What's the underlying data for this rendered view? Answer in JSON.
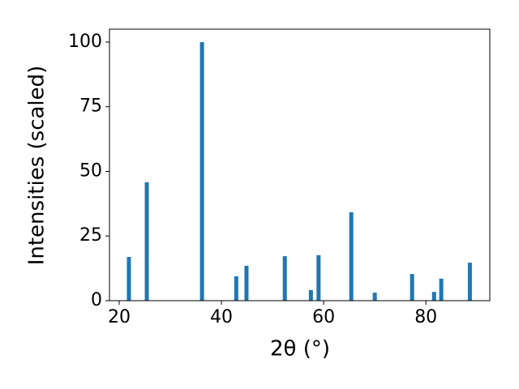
{
  "chart_data": {
    "type": "bar",
    "x_label": "2θ (°)",
    "y_label": "Intensities (scaled)",
    "x": [
      21.9,
      25.4,
      36.2,
      42.9,
      44.9,
      52.4,
      57.5,
      59.0,
      65.4,
      70.0,
      77.3,
      81.6,
      83.0,
      88.6
    ],
    "values": [
      16.9,
      45.8,
      100,
      9.4,
      13.5,
      17.2,
      4.1,
      17.6,
      34.2,
      3.1,
      10.3,
      3.4,
      8.5,
      14.7
    ],
    "color": "#1f77b4",
    "xlim": [
      18.1,
      92.5
    ],
    "xticks": [
      20,
      40,
      60,
      80
    ],
    "ylim": [
      0,
      105
    ],
    "yticks": [
      0,
      25,
      50,
      75,
      100
    ],
    "grid": false
  }
}
